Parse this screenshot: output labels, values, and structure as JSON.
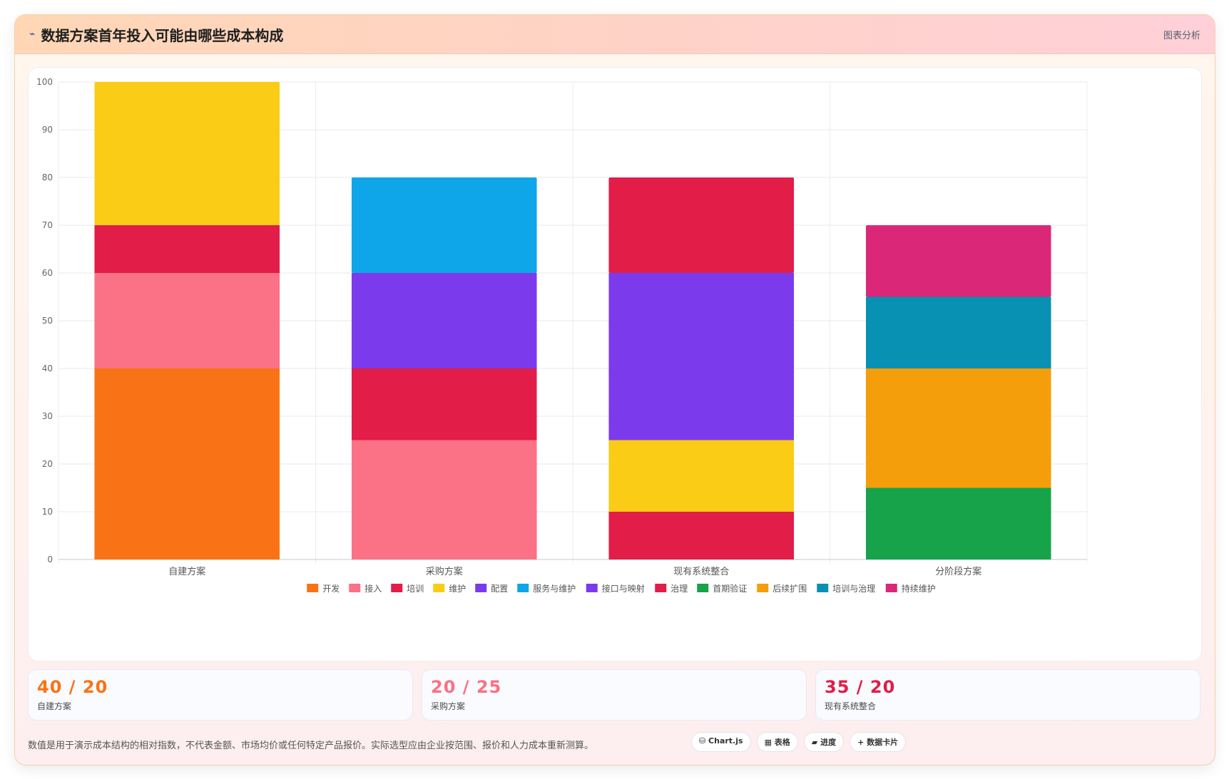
{
  "header": {
    "icon": "⌁",
    "title": "数据方案首年投入可能由哪些成本构成",
    "tag": "图表分析"
  },
  "chart_data": {
    "type": "bar",
    "stacked": true,
    "categories": [
      "自建方案",
      "采购方案",
      "现有系统整合",
      "分阶段方案"
    ],
    "ylim": [
      0,
      100
    ],
    "yticks": [
      0,
      10,
      20,
      30,
      40,
      50,
      60,
      70,
      80,
      90,
      100
    ],
    "grid": true,
    "legend_position": "bottom",
    "series": [
      {
        "name": "开发",
        "color": "#f97316",
        "values": [
          40,
          null,
          null,
          null
        ]
      },
      {
        "name": "接入",
        "color": "#fb7185",
        "values": [
          20,
          25,
          null,
          null
        ]
      },
      {
        "name": "培训",
        "color": "#e11d48",
        "values": [
          10,
          15,
          null,
          null
        ]
      },
      {
        "name": "维护",
        "color": "#facc15",
        "values": [
          30,
          null,
          15,
          null
        ]
      },
      {
        "name": "配置",
        "color": "#7c3aed",
        "values": [
          null,
          20,
          null,
          null
        ]
      },
      {
        "name": "服务与维护",
        "color": "#0ea5e9",
        "values": [
          null,
          20,
          null,
          null
        ]
      },
      {
        "name": "接口与映射",
        "color": "#7c3aed",
        "values": [
          null,
          null,
          35,
          null
        ]
      },
      {
        "name": "治理",
        "color": "#e11d48",
        "values": [
          null,
          null,
          20,
          null
        ]
      },
      {
        "name": "首期验证",
        "color": "#16a34a",
        "values": [
          null,
          null,
          null,
          15
        ]
      },
      {
        "name": "后续扩围",
        "color": "#f59e0b",
        "values": [
          null,
          null,
          null,
          25
        ]
      },
      {
        "name": "培训与治理",
        "color": "#0891b2",
        "values": [
          null,
          null,
          null,
          15
        ]
      },
      {
        "name": "持续维护",
        "color": "#db2777",
        "values": [
          null,
          null,
          null,
          15
        ]
      }
    ],
    "extra_segments": [
      {
        "category": "现有系统整合",
        "series": "治理",
        "value": 10,
        "stack_position": "bottom"
      }
    ]
  },
  "stats": [
    {
      "value": "40 / 20",
      "label": "自建方案",
      "color": "#f97316"
    },
    {
      "value": "20 / 25",
      "label": "采购方案",
      "color": "#fb7185"
    },
    {
      "value": "35 / 20",
      "label": "现有系统整合",
      "color": "#e11d48"
    }
  ],
  "footer": {
    "note": "数值是用于演示成本结构的相对指数，不代表金额、市场均价或任何特定产品报价。实际选型应由企业按范围、报价和人力成本重新测算。",
    "tools": [
      "⛁ Chart.js",
      "▦ 表格",
      "▰ 进度",
      "+ 数据卡片"
    ]
  }
}
